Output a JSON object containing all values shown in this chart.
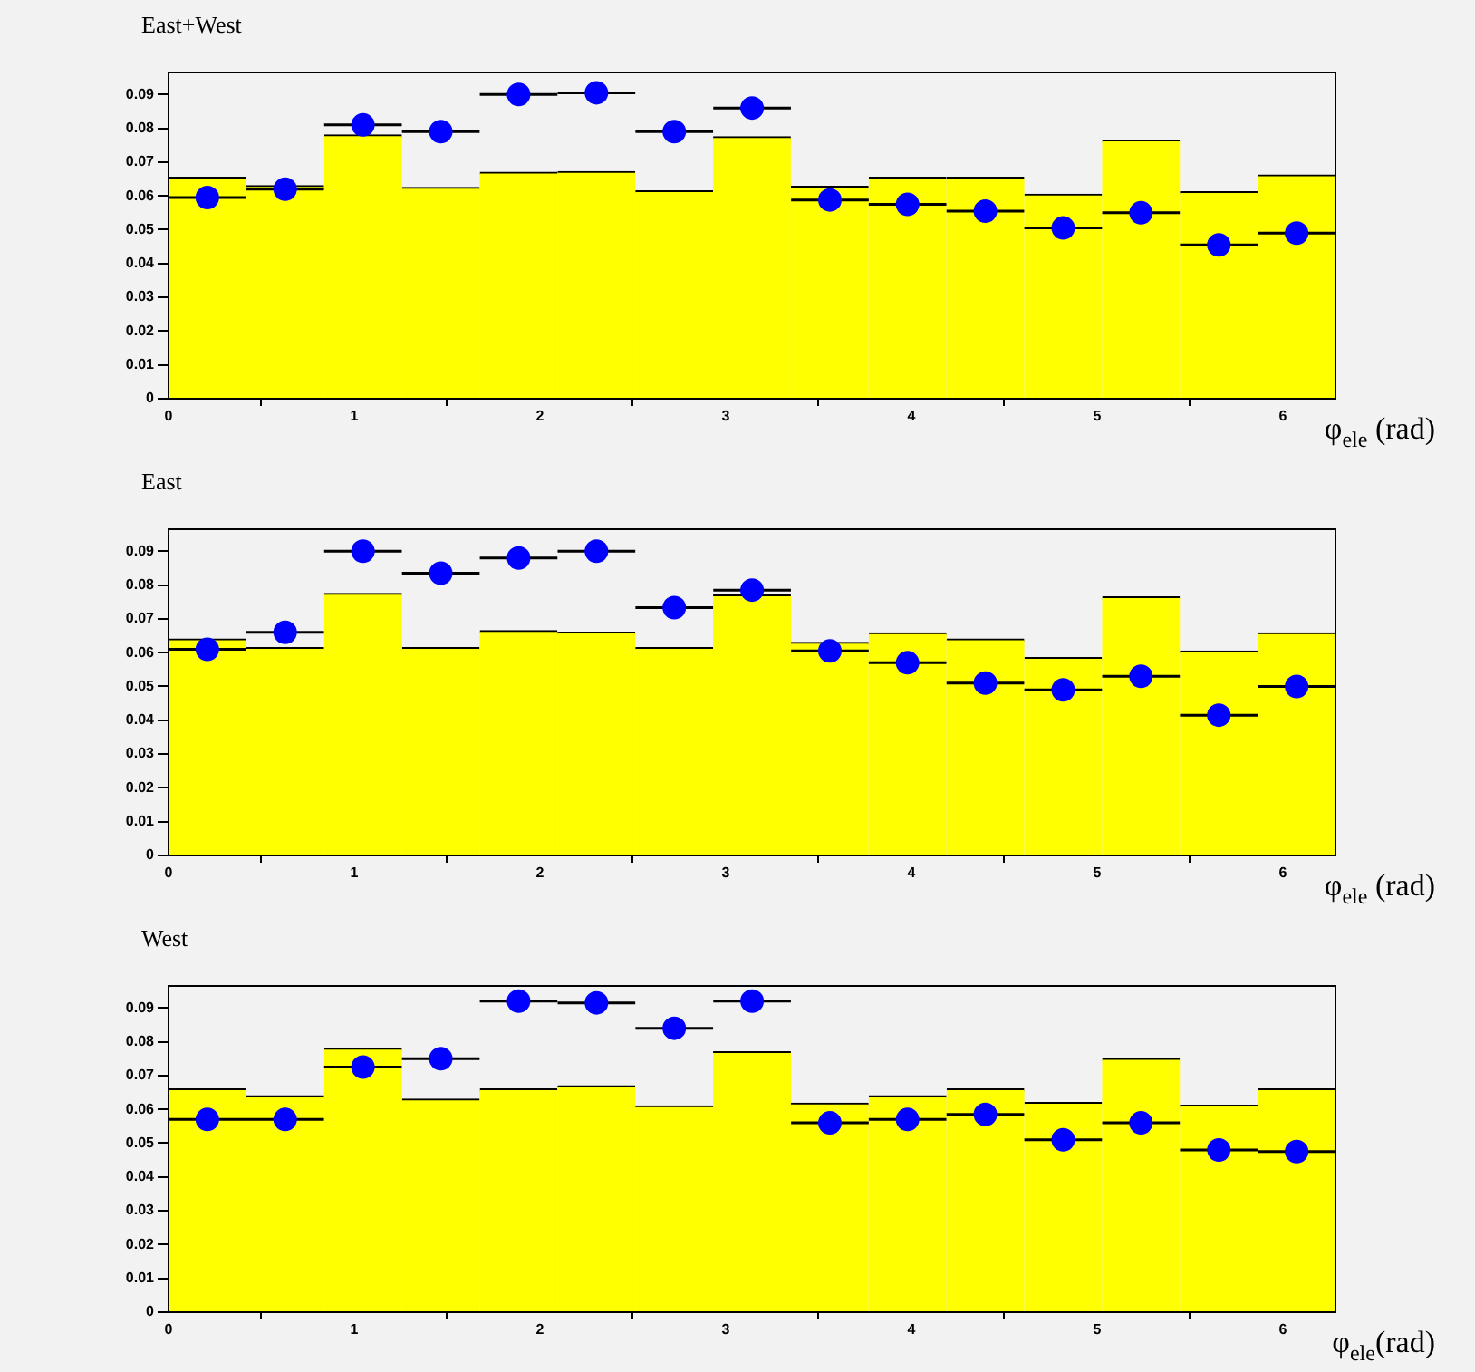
{
  "chart_data": [
    {
      "type": "histogram",
      "title": "East+West",
      "xlabel": "φ$_{ele}$ (rad)",
      "xlim": [
        0,
        6.283
      ],
      "xticks": [
        0,
        1,
        2,
        3,
        4,
        5,
        6
      ],
      "ylim": [
        0,
        0.0965
      ],
      "yticks": [
        0,
        0.01,
        0.02,
        0.03,
        0.04,
        0.05,
        0.06,
        0.07,
        0.08,
        0.09
      ],
      "grid": false,
      "legend": false,
      "marker": "circle",
      "bins": [
        0,
        0.419,
        0.838,
        1.257,
        1.676,
        2.094,
        2.513,
        2.932,
        3.351,
        3.77,
        4.189,
        4.608,
        5.027,
        5.445,
        5.864,
        6.283
      ],
      "series": [
        {
          "color": "#ffff00",
          "values": [
            0.0655,
            0.063,
            0.078,
            0.0625,
            0.067,
            0.0672,
            0.0615,
            0.0775,
            0.0628,
            0.0655,
            0.0655,
            0.0605,
            0.0765,
            0.0612,
            0.0662
          ]
        },
        {
          "type": "scatter",
          "color": "#0000ff",
          "x": [
            0.209,
            0.628,
            1.047,
            1.466,
            1.885,
            2.304,
            2.723,
            3.142,
            3.561,
            3.979,
            4.398,
            4.817,
            5.236,
            5.655,
            6.074
          ],
          "values": [
            0.0595,
            0.062,
            0.081,
            0.079,
            0.09,
            0.0905,
            0.079,
            0.086,
            0.0588,
            0.0575,
            0.0555,
            0.0505,
            0.055,
            0.0455,
            0.049
          ],
          "xerrors": [
            0.209,
            0.209,
            0.209,
            0.209,
            0.209,
            0.209,
            0.209,
            0.209,
            0.209,
            0.209,
            0.209,
            0.209,
            0.209,
            0.209,
            0.209
          ]
        }
      ]
    },
    {
      "type": "histogram",
      "title": "East",
      "xlabel": "φ$_{ele}$ (rad)",
      "xlim": [
        0,
        6.283
      ],
      "xticks": [
        0,
        1,
        2,
        3,
        4,
        5,
        6
      ],
      "ylim": [
        0,
        0.0965
      ],
      "yticks": [
        0,
        0.01,
        0.02,
        0.03,
        0.04,
        0.05,
        0.06,
        0.07,
        0.08,
        0.09
      ],
      "grid": false,
      "legend": false,
      "marker": "circle",
      "bins": [
        0,
        0.419,
        0.838,
        1.257,
        1.676,
        2.094,
        2.513,
        2.932,
        3.351,
        3.77,
        4.189,
        4.608,
        5.027,
        5.445,
        5.864,
        6.283
      ],
      "series": [
        {
          "color": "#ffff00",
          "values": [
            0.064,
            0.0615,
            0.0775,
            0.0615,
            0.0665,
            0.066,
            0.0615,
            0.077,
            0.063,
            0.0658,
            0.064,
            0.0585,
            0.0765,
            0.0605,
            0.0658
          ]
        },
        {
          "type": "scatter",
          "color": "#0000ff",
          "x": [
            0.209,
            0.628,
            1.047,
            1.466,
            1.885,
            2.304,
            2.723,
            3.142,
            3.561,
            3.979,
            4.398,
            4.817,
            5.236,
            5.655,
            6.074
          ],
          "values": [
            0.061,
            0.066,
            0.09,
            0.0835,
            0.088,
            0.09,
            0.0733,
            0.0785,
            0.0605,
            0.057,
            0.051,
            0.049,
            0.053,
            0.0415,
            0.05
          ],
          "xerrors": [
            0.209,
            0.209,
            0.209,
            0.209,
            0.209,
            0.209,
            0.209,
            0.209,
            0.209,
            0.209,
            0.209,
            0.209,
            0.209,
            0.209,
            0.209
          ]
        }
      ]
    },
    {
      "type": "histogram",
      "title": "West",
      "xlabel": "φ$_{ele}$(rad)",
      "xlim": [
        0,
        6.283
      ],
      "xticks": [
        0,
        1,
        2,
        3,
        4,
        5,
        6
      ],
      "ylim": [
        0,
        0.0965
      ],
      "yticks": [
        0,
        0.01,
        0.02,
        0.03,
        0.04,
        0.05,
        0.06,
        0.07,
        0.08,
        0.09
      ],
      "grid": false,
      "legend": false,
      "marker": "circle",
      "bins": [
        0,
        0.419,
        0.838,
        1.257,
        1.676,
        2.094,
        2.513,
        2.932,
        3.351,
        3.77,
        4.189,
        4.608,
        5.027,
        5.445,
        5.864,
        6.283
      ],
      "series": [
        {
          "color": "#ffff00",
          "values": [
            0.066,
            0.064,
            0.078,
            0.063,
            0.066,
            0.067,
            0.061,
            0.077,
            0.0618,
            0.064,
            0.066,
            0.062,
            0.075,
            0.0612,
            0.066
          ]
        },
        {
          "type": "scatter",
          "color": "#0000ff",
          "x": [
            0.209,
            0.628,
            1.047,
            1.466,
            1.885,
            2.304,
            2.723,
            3.142,
            3.561,
            3.979,
            4.398,
            4.817,
            5.236,
            5.655,
            6.074
          ],
          "values": [
            0.057,
            0.057,
            0.0725,
            0.075,
            0.092,
            0.0915,
            0.084,
            0.092,
            0.056,
            0.057,
            0.0585,
            0.051,
            0.056,
            0.048,
            0.0475
          ],
          "xerrors": [
            0.209,
            0.209,
            0.209,
            0.209,
            0.209,
            0.209,
            0.209,
            0.209,
            0.209,
            0.209,
            0.209,
            0.209,
            0.209,
            0.209,
            0.209
          ]
        }
      ]
    }
  ]
}
